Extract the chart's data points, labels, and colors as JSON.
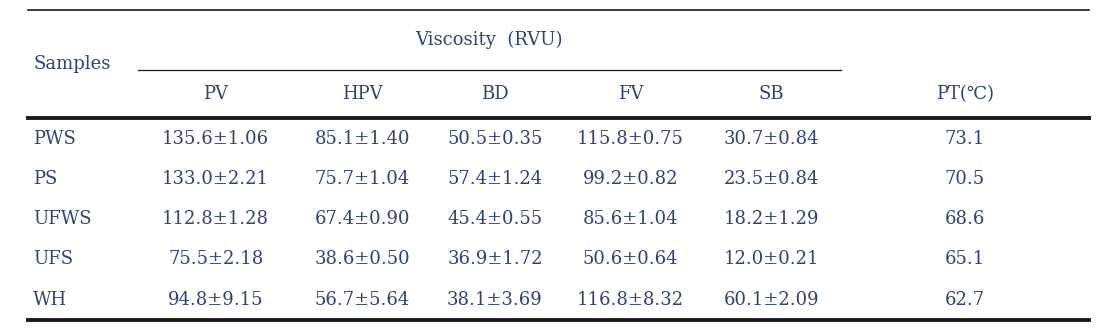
{
  "col_header_top": "Viscosity  (RVU)",
  "col_header_sub": [
    "PV",
    "HPV",
    "BD",
    "FV",
    "SB",
    "PT(℃)"
  ],
  "row_labels": [
    "PWS",
    "PS",
    "UFWS",
    "UFS",
    "WH"
  ],
  "data": [
    [
      "135.6±1.06",
      "85.1±1.40",
      "50.5±0.35",
      "115.8±0.75",
      "30.7±0.84",
      "73.1"
    ],
    [
      "133.0±2.21",
      "75.7±1.04",
      "57.4±1.24",
      "99.2±0.82",
      "23.5±0.84",
      "70.5"
    ],
    [
      "112.8±1.28",
      "67.4±0.90",
      "45.4±0.55",
      "85.6±1.04",
      "18.2±1.29",
      "68.6"
    ],
    [
      "75.5±2.18",
      "38.6±0.50",
      "36.9±1.72",
      "50.6±0.64",
      "12.0±0.21",
      "65.1"
    ],
    [
      "94.8±9.15",
      "56.7±5.64",
      "38.1±3.69",
      "116.8±8.32",
      "60.1±2.09",
      "62.7"
    ]
  ],
  "bg_color": "#ffffff",
  "text_color": "#2e4374",
  "line_color": "#1a1a1a",
  "fontsize": 13,
  "figsize": [
    11.06,
    3.33
  ],
  "dpi": 100
}
